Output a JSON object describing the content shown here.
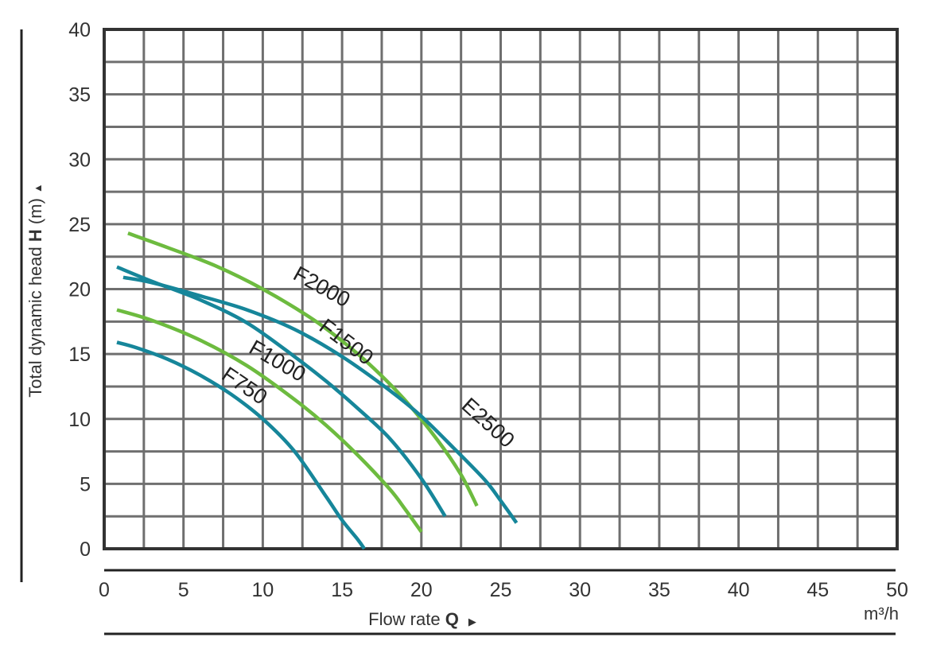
{
  "chart_data": {
    "type": "line",
    "xlabel": {
      "text": "Flow rate",
      "bold": "Q"
    },
    "ylabel": {
      "text": "Total dynamic head",
      "bold": "H",
      "unit": "(m)"
    },
    "x_unit": "m³/h",
    "x_ticks": [
      0,
      5,
      10,
      15,
      20,
      25,
      30,
      35,
      40,
      45,
      50
    ],
    "y_ticks": [
      0,
      5,
      10,
      15,
      20,
      25,
      30,
      35,
      40
    ],
    "xlim": [
      0,
      50
    ],
    "ylim": [
      0,
      40
    ],
    "grid": true,
    "colors": {
      "teal": "#16869a",
      "green": "#6dbb3f",
      "grid": "#6f6f6f",
      "axis": "#333333"
    },
    "series": [
      {
        "name": "F750",
        "color": "#16869a",
        "x": [
          0.8,
          2,
          4,
          6,
          8,
          10,
          12,
          14,
          15,
          16,
          16.4
        ],
        "y": [
          15.9,
          15.5,
          14.6,
          13.4,
          11.9,
          10.0,
          7.5,
          4.0,
          2.2,
          0.7,
          0
        ]
      },
      {
        "name": "F1000",
        "color": "#6dbb3f",
        "x": [
          0.8,
          3,
          6,
          9,
          12,
          14,
          16,
          18,
          19,
          20
        ],
        "y": [
          18.4,
          17.6,
          16.1,
          14.1,
          11.5,
          9.5,
          7.2,
          4.6,
          3.0,
          1.3
        ]
      },
      {
        "name": "F1500",
        "color": "#16869a",
        "x": [
          0.8,
          3,
          6,
          9,
          12,
          14,
          16,
          18,
          20,
          21.5
        ],
        "y": [
          21.7,
          20.6,
          19.2,
          17.4,
          14.8,
          12.9,
          10.8,
          8.5,
          5.4,
          2.5
        ]
      },
      {
        "name": "F2000",
        "color": "#6dbb3f",
        "x": [
          1.5,
          4,
          7,
          10,
          13,
          15,
          17,
          19,
          21,
          22.5,
          23.5
        ],
        "y": [
          24.3,
          23.2,
          21.8,
          20.0,
          17.8,
          16.0,
          13.9,
          11.4,
          8.4,
          5.7,
          3.3
        ]
      },
      {
        "name": "E2500",
        "color": "#16869a",
        "x": [
          1.2,
          3,
          6,
          9,
          12,
          15,
          18,
          20,
          22,
          24,
          25,
          26
        ],
        "y": [
          20.9,
          20.5,
          19.5,
          18.4,
          16.9,
          14.8,
          12.2,
          10.2,
          7.8,
          5.3,
          3.7,
          2.0
        ]
      }
    ],
    "annotations": [
      {
        "text": "F750",
        "x": 8.6,
        "y": 12.1,
        "angle": 34
      },
      {
        "text": "F1000",
        "x": 10.7,
        "y": 14.0,
        "angle": 30
      },
      {
        "text": "F1500",
        "x": 15.0,
        "y": 15.5,
        "angle": 37
      },
      {
        "text": "F2000",
        "x": 13.5,
        "y": 19.7,
        "angle": 29
      },
      {
        "text": "E2500",
        "x": 23.9,
        "y": 9.3,
        "angle": 42
      }
    ]
  }
}
